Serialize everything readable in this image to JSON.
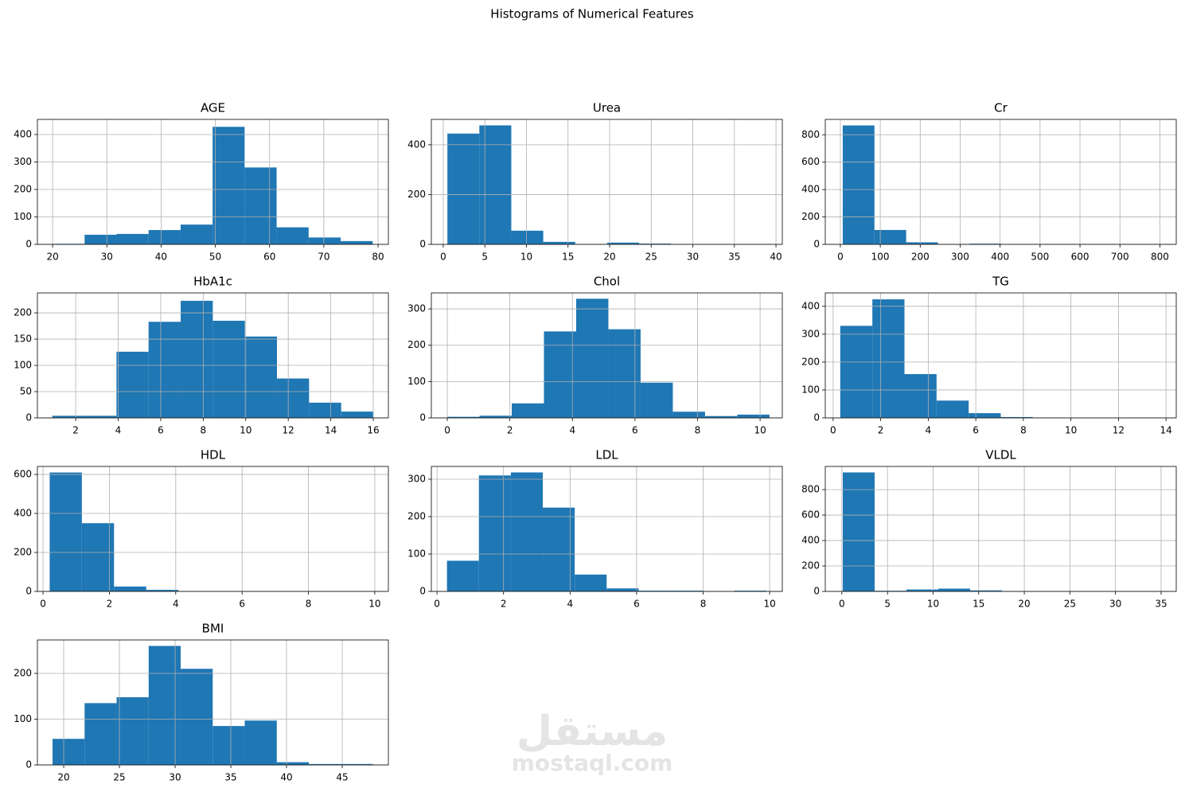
{
  "title": "Histograms of Numerical Features",
  "watermark": {
    "arabic": "مستقل",
    "latin": "mostaql.com"
  },
  "chart_data": [
    {
      "type": "histogram",
      "title": "AGE",
      "color": "#1f77b4",
      "grid": true,
      "bins": [
        20,
        25.9,
        31.8,
        37.7,
        43.6,
        49.5,
        55.4,
        61.3,
        67.2,
        73.1,
        79
      ],
      "values": [
        2,
        35,
        38,
        52,
        72,
        428,
        280,
        62,
        25,
        12
      ],
      "xlim": [
        17.2,
        81.9
      ],
      "ylim": [
        0,
        455
      ],
      "xticks": [
        20,
        30,
        40,
        50,
        60,
        70,
        80
      ],
      "yticks": [
        0,
        100,
        200,
        300,
        400
      ]
    },
    {
      "type": "histogram",
      "title": "Urea",
      "color": "#1f77b4",
      "grid": true,
      "bins": [
        0.5,
        4.34,
        8.18,
        12.02,
        15.86,
        19.7,
        23.54,
        27.38,
        31.22,
        35.06,
        38.9
      ],
      "values": [
        445,
        478,
        55,
        10,
        1,
        7,
        3,
        0,
        0,
        1
      ],
      "xlim": [
        -1.43,
        40.76
      ],
      "ylim": [
        0,
        502
      ],
      "xticks": [
        0,
        5,
        10,
        15,
        20,
        25,
        30,
        35,
        40
      ],
      "yticks": [
        0,
        200,
        400
      ]
    },
    {
      "type": "histogram",
      "title": "Cr",
      "color": "#1f77b4",
      "grid": true,
      "bins": [
        6,
        85.4,
        164.8,
        244.2,
        323.6,
        403,
        482.4,
        561.8,
        641.2,
        720.6,
        800
      ],
      "values": [
        868,
        105,
        15,
        2,
        5,
        0,
        0,
        0,
        0,
        1
      ],
      "xlim": [
        -37.7,
        841
      ],
      "ylim": [
        0,
        912
      ],
      "xticks": [
        0,
        100,
        200,
        300,
        400,
        500,
        600,
        700,
        800
      ],
      "yticks": [
        0,
        200,
        400,
        600,
        800
      ]
    },
    {
      "type": "histogram",
      "title": "HbA1c",
      "color": "#1f77b4",
      "grid": true,
      "bins": [
        0.9,
        2.41,
        3.92,
        5.43,
        6.94,
        8.45,
        9.96,
        11.47,
        12.98,
        14.49,
        16
      ],
      "values": [
        4,
        4,
        126,
        183,
        223,
        185,
        155,
        75,
        29,
        12
      ],
      "xlim": [
        0.2,
        16.71
      ],
      "ylim": [
        0,
        238
      ],
      "xticks": [
        2,
        4,
        6,
        8,
        10,
        12,
        14,
        16
      ],
      "yticks": [
        0,
        50,
        100,
        150,
        200
      ]
    },
    {
      "type": "histogram",
      "title": "Chol",
      "color": "#1f77b4",
      "grid": true,
      "bins": [
        0,
        1.03,
        2.06,
        3.09,
        4.12,
        5.15,
        6.18,
        7.21,
        8.24,
        9.27,
        10.3
      ],
      "values": [
        3,
        6,
        40,
        238,
        328,
        244,
        97,
        17,
        5,
        9
      ],
      "xlim": [
        -0.51,
        10.71
      ],
      "ylim": [
        0,
        344
      ],
      "xticks": [
        0,
        2,
        4,
        6,
        8,
        10
      ],
      "yticks": [
        0,
        100,
        200,
        300
      ]
    },
    {
      "type": "histogram",
      "title": "TG",
      "color": "#1f77b4",
      "grid": true,
      "bins": [
        0.3,
        1.65,
        3.0,
        4.35,
        5.7,
        7.05,
        8.4,
        9.75,
        11.1,
        12.45,
        13.8
      ],
      "values": [
        330,
        425,
        157,
        62,
        17,
        3,
        1,
        0,
        0,
        1
      ],
      "xlim": [
        -0.33,
        14.43
      ],
      "ylim": [
        0,
        448
      ],
      "xticks": [
        0,
        2,
        4,
        6,
        8,
        10,
        12,
        14
      ],
      "yticks": [
        0,
        100,
        200,
        300,
        400
      ]
    },
    {
      "type": "histogram",
      "title": "HDL",
      "color": "#1f77b4",
      "grid": true,
      "bins": [
        0.2,
        1.17,
        2.14,
        3.11,
        4.08,
        5.05,
        6.02,
        6.99,
        7.96,
        8.93,
        9.9
      ],
      "values": [
        610,
        350,
        25,
        8,
        1,
        0,
        0,
        0,
        0,
        1
      ],
      "xlim": [
        -0.17,
        10.41
      ],
      "ylim": [
        0,
        641
      ],
      "xticks": [
        0,
        2,
        4,
        6,
        8,
        10
      ],
      "yticks": [
        0,
        200,
        400,
        600
      ]
    },
    {
      "type": "histogram",
      "title": "LDL",
      "color": "#1f77b4",
      "grid": true,
      "bins": [
        0.3,
        1.26,
        2.22,
        3.18,
        4.14,
        5.1,
        6.06,
        7.02,
        7.98,
        8.94,
        9.9
      ],
      "values": [
        82,
        310,
        318,
        224,
        45,
        8,
        2,
        2,
        0,
        2
      ],
      "xlim": [
        -0.17,
        10.38
      ],
      "ylim": [
        0,
        334
      ],
      "xticks": [
        0,
        2,
        4,
        6,
        8,
        10
      ],
      "yticks": [
        0,
        100,
        200,
        300
      ]
    },
    {
      "type": "histogram",
      "title": "VLDL",
      "color": "#1f77b4",
      "grid": true,
      "bins": [
        0.1,
        3.59,
        7.08,
        10.57,
        14.06,
        17.55,
        21.04,
        24.53,
        28.02,
        31.51,
        35
      ],
      "values": [
        935,
        5,
        15,
        22,
        8,
        0,
        0,
        0,
        0,
        1
      ],
      "xlim": [
        -1.82,
        36.66
      ],
      "ylim": [
        0,
        982
      ],
      "xticks": [
        0,
        5,
        10,
        15,
        20,
        25,
        30,
        35
      ],
      "yticks": [
        0,
        200,
        400,
        600,
        800
      ]
    },
    {
      "type": "histogram",
      "title": "BMI",
      "color": "#1f77b4",
      "grid": true,
      "bins": [
        19,
        21.875,
        24.75,
        27.625,
        30.5,
        33.375,
        36.25,
        39.125,
        42,
        44.875,
        47.75
      ],
      "values": [
        57,
        135,
        148,
        260,
        210,
        85,
        97,
        6,
        2,
        2
      ],
      "xlim": [
        17.64,
        49.14
      ],
      "ylim": [
        0,
        273
      ],
      "xticks": [
        20,
        25,
        30,
        35,
        40,
        45
      ],
      "yticks": [
        0,
        100,
        200
      ]
    }
  ]
}
